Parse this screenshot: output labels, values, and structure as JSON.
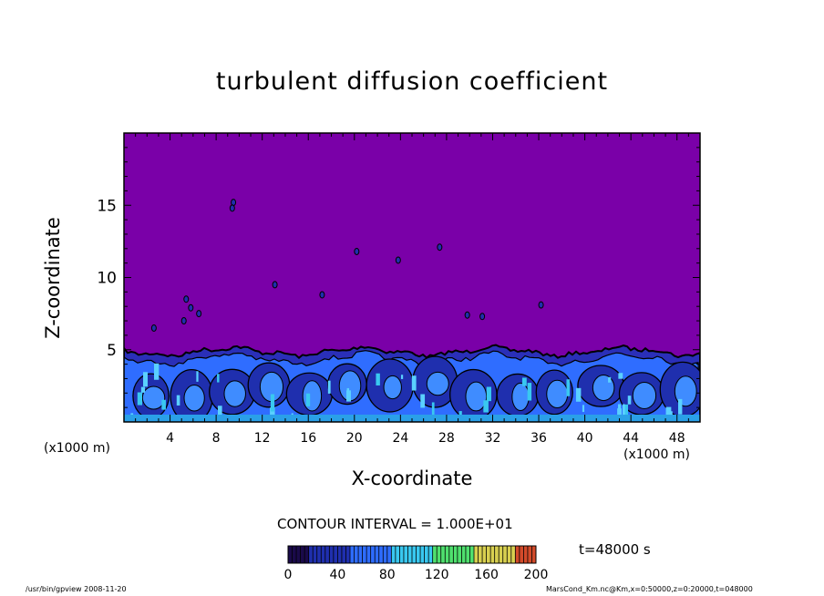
{
  "chart_data": {
    "type": "contour",
    "title": "turbulent diffusion coefficient",
    "xlabel": "X-coordinate",
    "ylabel": "Z-coordinate",
    "x_unit": "(x1000 m)",
    "y_unit": "(x1000 m)",
    "xlim": [
      0,
      50
    ],
    "ylim": [
      0,
      20
    ],
    "x_ticks": [
      4,
      8,
      12,
      16,
      20,
      24,
      28,
      32,
      36,
      40,
      44,
      48
    ],
    "y_ticks": [
      5,
      10,
      15
    ],
    "contour_interval_text": "CONTOUR INTERVAL = 1.000E+01",
    "time_text": "t=48000 s",
    "colorbar": {
      "min": 0,
      "max": 200,
      "ticks": [
        0,
        40,
        80,
        120,
        160,
        200
      ],
      "colors": [
        "#1a0a4a",
        "#1f2fae",
        "#2e6cff",
        "#39c8f0",
        "#4fe06e",
        "#d8d050",
        "#d24a2a"
      ]
    },
    "background_color": "#7a00a8",
    "turbulent_layer_top_km": 5,
    "grid": false
  },
  "footer": {
    "left": "/usr/bin/gpview   2008-11-20",
    "right": "MarsCond_Km.nc@Km,x=0:50000,z=0:20000,t=048000"
  }
}
